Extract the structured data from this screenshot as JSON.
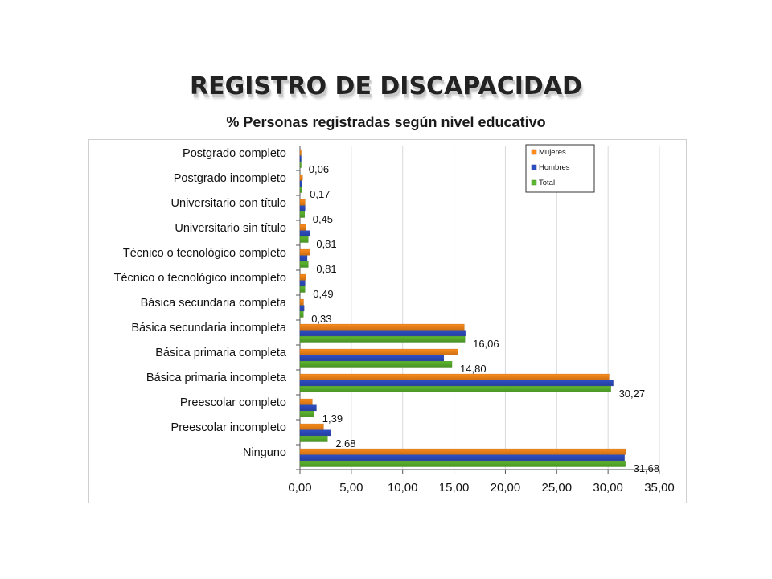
{
  "page": {
    "title": "REGISTRO DE DISCAPACIDAD",
    "subtitle": "% Personas registradas según nivel educativo"
  },
  "chart_data": {
    "type": "bar",
    "orientation": "horizontal",
    "categories": [
      "Postgrado completo",
      "Postgrado incompleto",
      "Universitario con título",
      "Universitario sin título",
      "Técnico o tecnológico completo",
      "Técnico o tecnológico incompleto",
      "Básica secundaria completa",
      "Básica secundaria incompleta",
      "Básica primaria completa",
      "Básica primaria incompleta",
      "Preescolar completo",
      "Preescolar incompleto",
      "Ninguno"
    ],
    "series": [
      {
        "name": "Mujeres",
        "color": "#ff8c1a",
        "values": [
          0.05,
          0.25,
          0.5,
          0.6,
          0.95,
          0.55,
          0.35,
          16.0,
          15.4,
          30.1,
          1.2,
          2.3,
          31.7
        ]
      },
      {
        "name": "Hombres",
        "color": "#2e4fc4",
        "values": [
          0.1,
          0.2,
          0.5,
          1.0,
          0.7,
          0.5,
          0.4,
          16.1,
          14.0,
          30.5,
          1.6,
          3.0,
          31.6
        ]
      },
      {
        "name": "Total",
        "color": "#5cb82e",
        "values": [
          0.06,
          0.17,
          0.45,
          0.81,
          0.81,
          0.49,
          0.33,
          16.06,
          14.8,
          30.27,
          1.39,
          2.68,
          31.68
        ]
      }
    ],
    "data_labels": [
      "0,06",
      "0,17",
      "0,45",
      "0,81",
      "0,81",
      "0,49",
      "0,33",
      "16,06",
      "14,80",
      "30,27",
      "1,39",
      "2,68",
      "31,68"
    ],
    "xlim": [
      0,
      35
    ],
    "xticks": [
      "0,00",
      "5,00",
      "10,00",
      "15,00",
      "20,00",
      "25,00",
      "30,00",
      "35,00"
    ],
    "grid": true,
    "legend_position": "top-right"
  }
}
